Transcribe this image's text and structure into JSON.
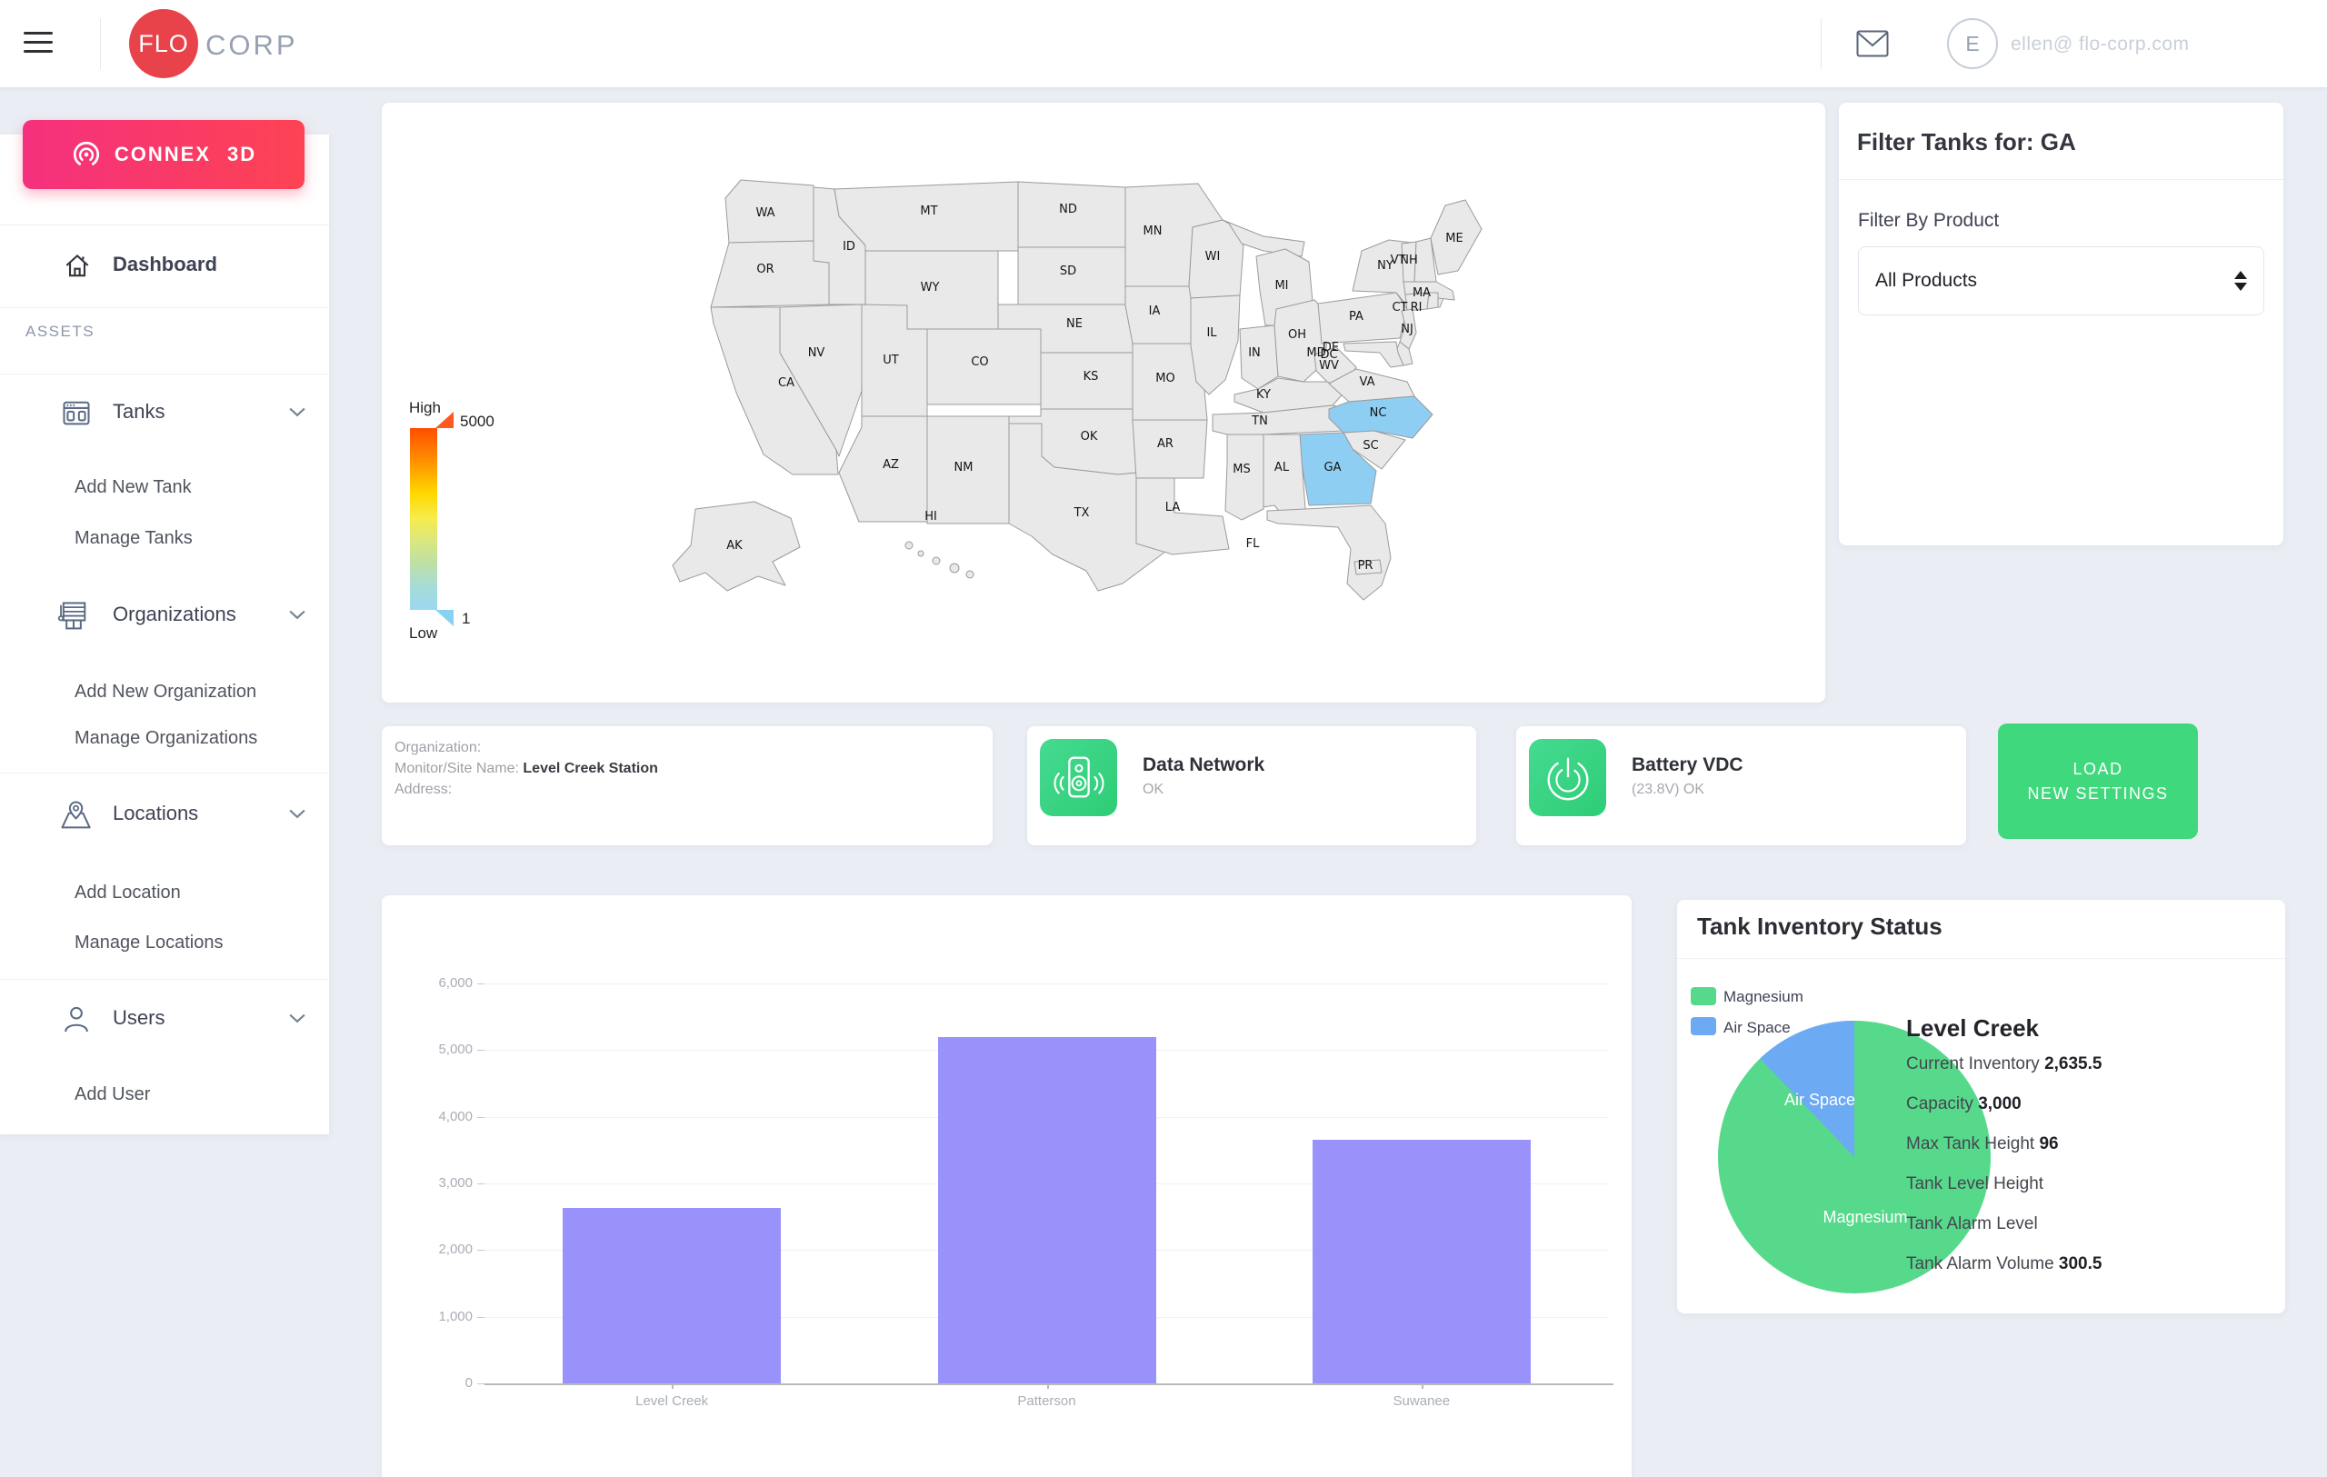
{
  "header": {
    "brand_left": "FLO",
    "brand_right": "CORP",
    "email": "ellen@ flo-corp.com",
    "avatar_initial": "E"
  },
  "sidebar": {
    "connex_label": "CONNEX 3D",
    "dashboard_label": "Dashboard",
    "section_label": "ASSETS",
    "groups": [
      {
        "label": "Tanks",
        "items": [
          "Add New Tank",
          "Manage Tanks"
        ]
      },
      {
        "label": "Organizations",
        "items": [
          "Add New Organization",
          "Manage Organizations"
        ]
      },
      {
        "label": "Locations",
        "items": [
          "Add Location",
          "Manage Locations"
        ]
      },
      {
        "label": "Users",
        "items": [
          "Add User"
        ]
      }
    ]
  },
  "map": {
    "legend": {
      "high_label": "High",
      "low_label": "Low",
      "max_value": "5000",
      "min_value": "1"
    },
    "state_fill": "#e9e9e9",
    "highlight_color": "#8fcef3",
    "highlighted": [
      "GA",
      "NC"
    ],
    "state_labels": [
      "WA",
      "OR",
      "CA",
      "NV",
      "ID",
      "MT",
      "WY",
      "UT",
      "CO",
      "AZ",
      "NM",
      "ND",
      "SD",
      "NE",
      "KS",
      "OK",
      "TX",
      "MN",
      "IA",
      "MO",
      "AR",
      "LA",
      "WI",
      "IL",
      "MI",
      "IN",
      "OH",
      "KY",
      "TN",
      "MS",
      "AL",
      "GA",
      "FL",
      "WV",
      "VA",
      "NC",
      "SC",
      "PA",
      "NY",
      "NJ",
      "DE",
      "MD",
      "DC",
      "ME",
      "VT",
      "NH",
      "MA",
      "CT",
      "RI",
      "AK",
      "HI",
      "PR"
    ]
  },
  "filter_panel": {
    "title": "Filter Tanks for: GA",
    "product_label": "Filter By Product",
    "selected_product": "All Products"
  },
  "status_row": {
    "organization": {
      "org_label": "Organization:",
      "site_label": "Monitor/Site Name:",
      "site_value": "Level Creek Station",
      "address_label": "Address:"
    },
    "data_network": {
      "title": "Data Network",
      "status": "OK"
    },
    "battery": {
      "title": "Battery VDC",
      "status": "(23.8V) OK"
    },
    "load_button_line1": "LOAD",
    "load_button_line2": "NEW SETTINGS"
  },
  "chart_data": [
    {
      "type": "bar",
      "title": "",
      "xlabel": "",
      "ylabel": "",
      "categories": [
        "Level Creek",
        "Patterson",
        "Suwanee"
      ],
      "values": [
        2635.5,
        5200,
        3650
      ],
      "ylim": [
        0,
        6000
      ],
      "ytick_step": 1000,
      "ytick_labels": [
        "0",
        "1,000",
        "2,000",
        "3,000",
        "4,000",
        "5,000",
        "6,000"
      ],
      "bar_color": "#9a92fb",
      "grid": true,
      "legend_position": "none"
    },
    {
      "type": "pie",
      "title": "Tank Inventory Status",
      "slices": [
        {
          "label": "Magnesium",
          "value": 2635.5,
          "color": "#57d98c"
        },
        {
          "label": "Air Space",
          "value": 364.5,
          "color": "#6caaf4"
        }
      ],
      "legend_position": "top-left"
    }
  ],
  "tank_inventory": {
    "title": "Tank Inventory Status",
    "details": {
      "name": "Level Creek",
      "rows": [
        {
          "label": "Current Inventory",
          "value": "2,635.5"
        },
        {
          "label": "Capacity",
          "value": "3,000"
        },
        {
          "label": "Max Tank Height",
          "value": "96"
        },
        {
          "label": "Tank Level Height",
          "value": ""
        },
        {
          "label": "Tank Alarm Level",
          "value": ""
        },
        {
          "label": "Tank Alarm Volume",
          "value": "300.5"
        }
      ]
    }
  }
}
